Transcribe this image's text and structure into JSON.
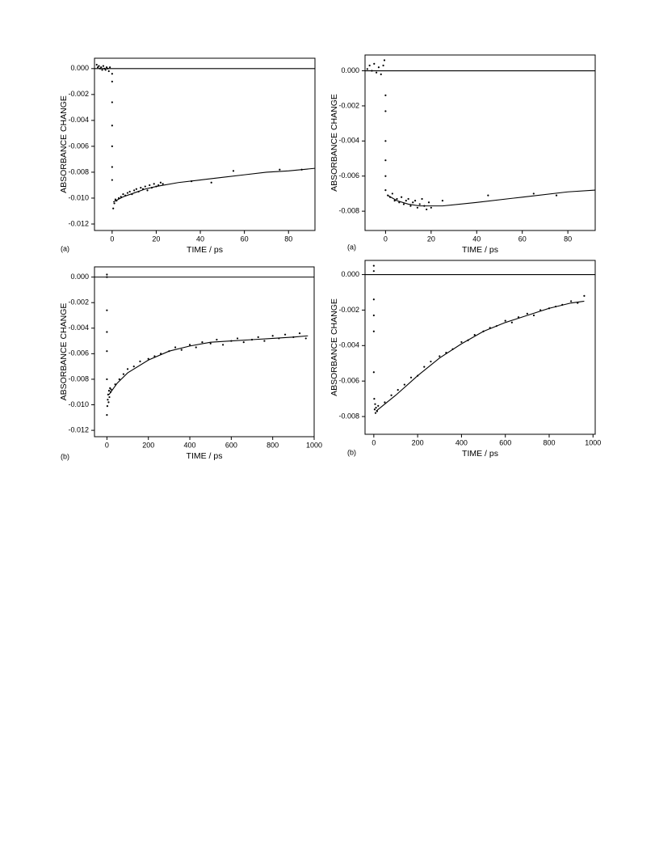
{
  "chart_data": [
    {
      "type": "scatter",
      "panel_label": "(a)",
      "x_label": "TIME / ps",
      "y_label": "ABSORBANCE CHANGE",
      "xlim": [
        -8,
        92
      ],
      "ylim": [
        -0.0125,
        0.0008
      ],
      "xticks": [
        0,
        20,
        40,
        60,
        80
      ],
      "yticks": [
        {
          "value": 0,
          "label": "0.000"
        },
        -0.002,
        -0.004,
        -0.006,
        -0.008,
        {
          "value": -0.01,
          "label": "-0.010"
        },
        -0.012
      ],
      "series": [
        {
          "type": "scatter",
          "color": "#000000",
          "x": [
            -7,
            -6.5,
            -6,
            -5.5,
            -5,
            -4.5,
            -4,
            -3.5,
            -3,
            -2.5,
            -2,
            -1.5,
            -1,
            0,
            0,
            0,
            0,
            0,
            0,
            0,
            0.5,
            1,
            1.5,
            2,
            3,
            4,
            5,
            6,
            7,
            8,
            9,
            10,
            11,
            12,
            13,
            14,
            15,
            16,
            17,
            18,
            19,
            20,
            21,
            22,
            23,
            36,
            45,
            55,
            76,
            86
          ],
          "values": [
            0.0003,
            0.0001,
            0.0002,
            0,
            0.0001,
            -0.0001,
            0.0002,
            0,
            -0.0001,
            0.0001,
            0,
            -0.0002,
            0.0001,
            -0.0004,
            -0.001,
            -0.0026,
            -0.0044,
            -0.006,
            -0.0076,
            -0.0086,
            -0.0108,
            -0.0104,
            -0.0101,
            -0.0102,
            -0.01,
            -0.0099,
            -0.0097,
            -0.0098,
            -0.0096,
            -0.0095,
            -0.0097,
            -0.0094,
            -0.0093,
            -0.0095,
            -0.0092,
            -0.0093,
            -0.0091,
            -0.0094,
            -0.009,
            -0.0092,
            -0.0089,
            -0.0091,
            -0.009,
            -0.0088,
            -0.0089,
            -0.0087,
            -0.0088,
            -0.0079,
            -0.0078,
            -0.0078
          ]
        },
        {
          "type": "line",
          "color": "#000000",
          "x": [
            -8,
            92
          ],
          "values": [
            0,
            0
          ]
        },
        {
          "type": "line",
          "color": "#000000",
          "x": [
            0.5,
            5,
            10,
            15,
            20,
            30,
            40,
            50,
            60,
            70,
            80,
            92
          ],
          "values": [
            -0.0103,
            -0.0099,
            -0.0096,
            -0.0093,
            -0.0091,
            -0.0088,
            -0.0086,
            -0.0084,
            -0.0082,
            -0.008,
            -0.0079,
            -0.0077
          ]
        }
      ]
    },
    {
      "type": "scatter",
      "panel_label": "(a)",
      "x_label": "TIME / ps",
      "y_label": "ABSORBANCE CHANGE",
      "xlim": [
        -9,
        92
      ],
      "ylim": [
        -0.0091,
        0.0009
      ],
      "xticks": [
        0,
        20,
        40,
        60,
        80
      ],
      "yticks": [
        {
          "value": 0,
          "label": "0.000"
        },
        -0.002,
        -0.004,
        -0.006,
        -0.008
      ],
      "series": [
        {
          "type": "scatter",
          "color": "#000000",
          "x": [
            -8,
            -7,
            -6,
            -5,
            -4,
            -3,
            -2,
            -1,
            -0.5,
            0,
            0,
            0,
            0,
            0,
            0,
            1,
            2,
            3,
            4,
            5,
            6,
            7,
            8,
            9,
            10,
            11,
            12,
            13,
            14,
            15,
            16,
            17,
            18,
            19,
            20,
            25,
            45,
            65,
            75
          ],
          "values": [
            0.0001,
            0.0003,
            0,
            0.0004,
            -0.0001,
            0.0002,
            -0.0002,
            0.0003,
            0.0006,
            -0.0014,
            -0.0023,
            -0.004,
            -0.0051,
            -0.006,
            -0.0068,
            -0.0071,
            -0.0072,
            -0.007,
            -0.0074,
            -0.0073,
            -0.0075,
            -0.0072,
            -0.0076,
            -0.0074,
            -0.0073,
            -0.0077,
            -0.0075,
            -0.0074,
            -0.0078,
            -0.0076,
            -0.0073,
            -0.0077,
            -0.0079,
            -0.0075,
            -0.0078,
            -0.0074,
            -0.0071,
            -0.007,
            -0.0071
          ]
        },
        {
          "type": "line",
          "color": "#000000",
          "x": [
            -9,
            92
          ],
          "values": [
            0,
            0
          ]
        },
        {
          "type": "line",
          "color": "#000000",
          "x": [
            1,
            5,
            10,
            15,
            20,
            25,
            40,
            60,
            80,
            92
          ],
          "values": [
            -0.0071,
            -0.0074,
            -0.0076,
            -0.0077,
            -0.0077,
            -0.0077,
            -0.0075,
            -0.0072,
            -0.0069,
            -0.0068
          ]
        }
      ]
    },
    {
      "type": "scatter",
      "panel_label": "(b)",
      "x_label": "TIME / ps",
      "y_label": "ABSORBANCE CHANGE",
      "xlim": [
        -60,
        1000
      ],
      "ylim": [
        -0.0125,
        0.0008
      ],
      "xticks": [
        0,
        200,
        400,
        600,
        800,
        1000
      ],
      "yticks": [
        {
          "value": 0,
          "label": "0.000"
        },
        -0.002,
        -0.004,
        -0.006,
        -0.008,
        {
          "value": -0.01,
          "label": "-0.010"
        },
        -0.012
      ],
      "series": [
        {
          "type": "scatter",
          "color": "#000000",
          "x": [
            0,
            0,
            0,
            0,
            0,
            0,
            0,
            2,
            4,
            6,
            8,
            10,
            12,
            15,
            18,
            20,
            40,
            60,
            80,
            100,
            130,
            160,
            200,
            230,
            260,
            300,
            330,
            360,
            400,
            430,
            460,
            500,
            530,
            560,
            600,
            630,
            660,
            700,
            730,
            760,
            800,
            830,
            860,
            900,
            930,
            960
          ],
          "values": [
            0.0002,
            0,
            -0.0026,
            -0.0043,
            -0.0058,
            -0.008,
            -0.0108,
            -0.0101,
            -0.0096,
            -0.0092,
            -0.0098,
            -0.0089,
            -0.0094,
            -0.0087,
            -0.009,
            -0.0088,
            -0.0084,
            -0.008,
            -0.0076,
            -0.0072,
            -0.007,
            -0.0066,
            -0.0064,
            -0.0062,
            -0.006,
            -0.0058,
            -0.0055,
            -0.0057,
            -0.0053,
            -0.0055,
            -0.0051,
            -0.0052,
            -0.0049,
            -0.0053,
            -0.005,
            -0.0048,
            -0.0051,
            -0.0049,
            -0.0047,
            -0.005,
            -0.0046,
            -0.0048,
            -0.0045,
            -0.0047,
            -0.0044,
            -0.0048
          ]
        },
        {
          "type": "line",
          "color": "#000000",
          "x": [
            -60,
            1000
          ],
          "values": [
            0,
            0
          ]
        },
        {
          "type": "line",
          "color": "#000000",
          "x": [
            10,
            50,
            100,
            200,
            300,
            400,
            500,
            600,
            700,
            800,
            900,
            970
          ],
          "values": [
            -0.0092,
            -0.0083,
            -0.0075,
            -0.0065,
            -0.0058,
            -0.0054,
            -0.0051,
            -0.005,
            -0.0049,
            -0.0048,
            -0.0047,
            -0.0046
          ]
        }
      ]
    },
    {
      "type": "scatter",
      "panel_label": "(b)",
      "x_label": "TIME / ps",
      "y_label": "ABSORBANCE CHANGE",
      "xlim": [
        -40,
        1010
      ],
      "ylim": [
        -0.009,
        0.0008
      ],
      "xticks": [
        0,
        200,
        400,
        600,
        800,
        1000
      ],
      "yticks": [
        {
          "value": 0,
          "label": "0.000"
        },
        -0.002,
        -0.004,
        -0.006,
        -0.008
      ],
      "series": [
        {
          "type": "scatter",
          "color": "#000000",
          "x": [
            0,
            0,
            0,
            0,
            0,
            0,
            2,
            4,
            6,
            8,
            10,
            15,
            20,
            50,
            80,
            110,
            140,
            170,
            200,
            230,
            260,
            300,
            330,
            360,
            400,
            430,
            460,
            500,
            530,
            560,
            600,
            630,
            660,
            700,
            730,
            760,
            800,
            830,
            860,
            900,
            930,
            960
          ],
          "values": [
            0.0005,
            0.0002,
            -0.0014,
            -0.0023,
            -0.0032,
            -0.0055,
            -0.007,
            -0.0076,
            -0.0073,
            -0.0078,
            -0.0075,
            -0.0077,
            -0.0074,
            -0.0072,
            -0.0068,
            -0.0065,
            -0.0062,
            -0.0058,
            -0.0057,
            -0.0052,
            -0.0049,
            -0.0046,
            -0.0044,
            -0.0042,
            -0.0038,
            -0.0037,
            -0.0034,
            -0.0032,
            -0.003,
            -0.0029,
            -0.0026,
            -0.0027,
            -0.0024,
            -0.0022,
            -0.0023,
            -0.002,
            -0.0019,
            -0.0018,
            -0.0017,
            -0.0015,
            -0.0016,
            -0.0012
          ]
        },
        {
          "type": "line",
          "color": "#000000",
          "x": [
            -40,
            1010
          ],
          "values": [
            0,
            0
          ]
        },
        {
          "type": "line",
          "color": "#000000",
          "x": [
            10,
            100,
            200,
            300,
            400,
            500,
            600,
            700,
            800,
            900,
            960
          ],
          "values": [
            -0.0077,
            -0.0068,
            -0.0057,
            -0.0047,
            -0.0039,
            -0.0032,
            -0.0027,
            -0.0023,
            -0.0019,
            -0.0016,
            -0.0015
          ]
        }
      ]
    }
  ]
}
